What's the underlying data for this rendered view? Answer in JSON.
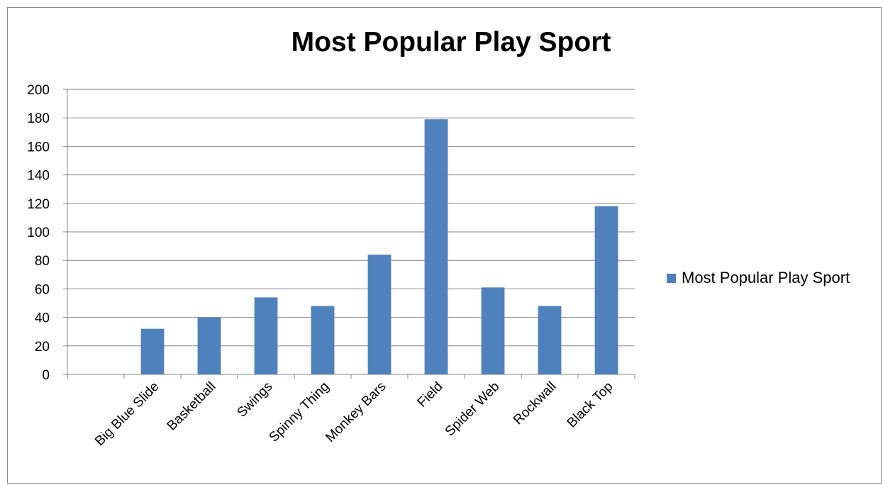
{
  "chart_data": {
    "type": "bar",
    "title": "Most Popular Play Sport",
    "categories": [
      "",
      "Big Blue Slide",
      "Basketball",
      "Swings",
      "Spinny Thing",
      "Monkey Bars",
      "Field",
      "Spider Web",
      "Rockwall",
      "Black Top"
    ],
    "series": [
      {
        "name": "Most Popular Play Sport",
        "values": [
          null,
          32,
          40,
          54,
          48,
          84,
          179,
          61,
          48,
          118
        ],
        "color": "#4f81bd"
      }
    ],
    "xlabel": "",
    "ylabel": "",
    "ylim": [
      0,
      200
    ],
    "yticks": [
      0,
      20,
      40,
      60,
      80,
      100,
      120,
      140,
      160,
      180,
      200
    ],
    "grid": true,
    "legend_position": "right"
  }
}
